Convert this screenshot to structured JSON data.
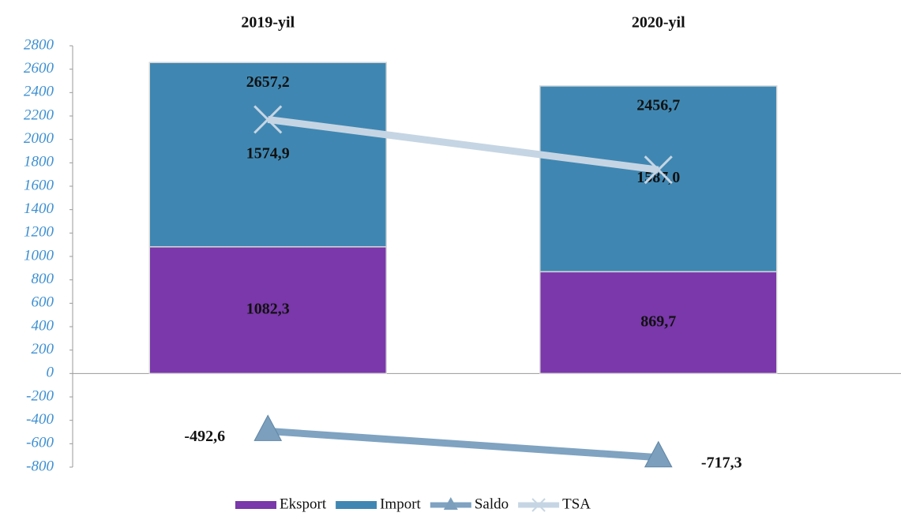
{
  "chart_data": {
    "type": "bar",
    "stacked": true,
    "categories": [
      "2019-yil",
      "2020-yil"
    ],
    "series": [
      {
        "name": "Eksport",
        "type": "bar",
        "color": "#7a38aa",
        "values": [
          1082.3,
          869.7
        ],
        "value_labels": [
          "1082,3",
          "869,7"
        ]
      },
      {
        "name": "Import",
        "type": "bar",
        "color": "#3f87b2",
        "values": [
          1574.9,
          1587.0
        ],
        "value_labels": [
          "1574,9",
          "1587,0"
        ]
      },
      {
        "name": "Saldo",
        "type": "line",
        "marker": "triangle",
        "color": "#7fa3c1",
        "values": [
          -492.6,
          -717.3
        ],
        "value_labels": [
          "-492,6",
          "-717,3"
        ]
      },
      {
        "name": "TSA",
        "type": "line",
        "marker": "x",
        "color": "#c6d5e3",
        "values": [
          2170,
          1740
        ]
      }
    ],
    "total_labels": [
      "2657,2",
      "2456,7"
    ],
    "ylim": [
      -800,
      2800
    ],
    "yticks": [
      -800,
      -600,
      -400,
      -200,
      0,
      200,
      400,
      600,
      800,
      1000,
      1200,
      1400,
      1600,
      1800,
      2000,
      2200,
      2400,
      2600,
      2800
    ],
    "legend": "bottom"
  }
}
